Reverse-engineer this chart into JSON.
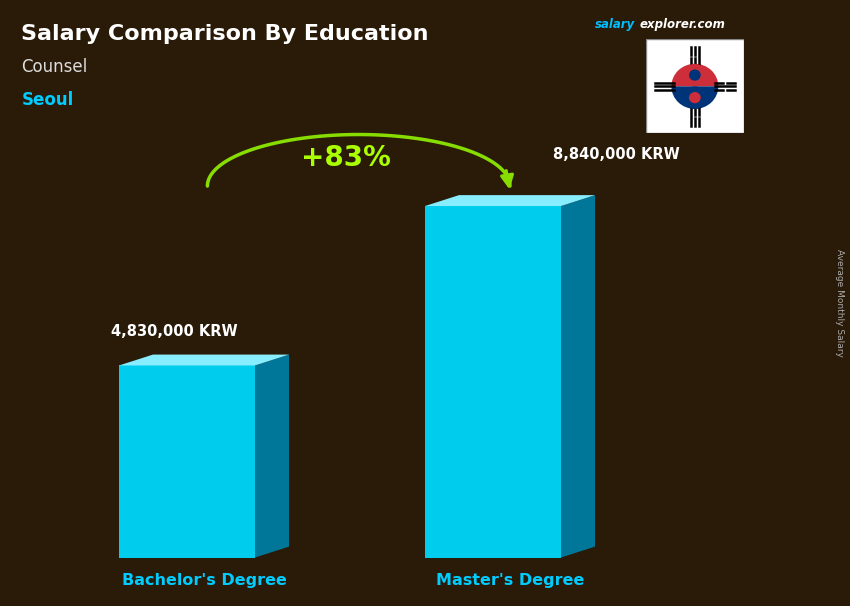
{
  "title": "Salary Comparison By Education",
  "subtitle": "Counsel",
  "city": "Seoul",
  "watermark_salary": "salary",
  "watermark_rest": "explorer.com",
  "ylabel": "Average Monthly Salary",
  "categories": [
    "Bachelor's Degree",
    "Master's Degree"
  ],
  "values": [
    4830000,
    8840000
  ],
  "value_labels": [
    "4,830,000 KRW",
    "8,840,000 KRW"
  ],
  "pct_change": "+83%",
  "bar_color_front": "#00CCEE",
  "bar_color_top": "#88EEFF",
  "bar_color_side": "#007799",
  "bg_color": "#2a1a08",
  "title_color": "#FFFFFF",
  "subtitle_color": "#DDDDDD",
  "city_color": "#00CCFF",
  "watermark_salary_color": "#00BFFF",
  "watermark_rest_color": "#FFFFFF",
  "value_label_color": "#FFFFFF",
  "xlabel_color": "#00CCFF",
  "pct_color": "#AAFF00",
  "arrow_color": "#88DD00",
  "ylabel_color": "#AAAAAA",
  "figsize": [
    8.5,
    6.06
  ],
  "dpi": 100,
  "bar_positions": [
    2.2,
    5.8
  ],
  "bar_width": 1.6,
  "bar_depth": 0.4,
  "bar_depth_ratio": 0.45,
  "y_bottom": 0.8,
  "bar_max_height": 5.8,
  "xlim": [
    0,
    10
  ],
  "ylim": [
    0,
    10
  ]
}
